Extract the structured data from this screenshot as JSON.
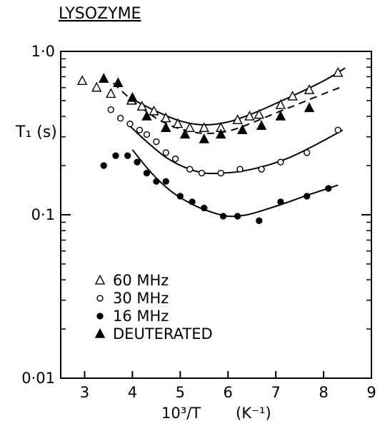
{
  "chart_data": {
    "type": "scatter",
    "title": "LYSOZYME",
    "xlabel": "10³/T",
    "xlabel_unit": "(K⁻¹)",
    "ylabel": "T₁ (s)",
    "xlim": [
      2.5,
      9
    ],
    "ylim": [
      0.01,
      1.0
    ],
    "y_scale": "log",
    "x_ticks": [
      3,
      4,
      5,
      6,
      7,
      8,
      9
    ],
    "x_tick_labels": [
      "3",
      "4",
      "5",
      "6",
      "7",
      "8",
      "9"
    ],
    "y_ticks": [
      0.01,
      0.1,
      1.0
    ],
    "y_tick_labels": [
      "0·01",
      "0·1",
      "1·0"
    ],
    "grid": false,
    "legend_position": "bottom-left",
    "series": [
      {
        "name": "60 MHz",
        "marker": "open-triangle",
        "points": [
          [
            2.95,
            0.66
          ],
          [
            3.25,
            0.6
          ],
          [
            3.55,
            0.55
          ],
          [
            3.98,
            0.5
          ],
          [
            4.2,
            0.46
          ],
          [
            4.45,
            0.43
          ],
          [
            4.7,
            0.39
          ],
          [
            4.95,
            0.36
          ],
          [
            5.2,
            0.34
          ],
          [
            5.5,
            0.34
          ],
          [
            5.85,
            0.34
          ],
          [
            6.2,
            0.38
          ],
          [
            6.45,
            0.4
          ],
          [
            6.65,
            0.41
          ],
          [
            7.1,
            0.47
          ],
          [
            7.35,
            0.53
          ],
          [
            7.7,
            0.58
          ],
          [
            8.3,
            0.74
          ]
        ],
        "fit": {
          "style": "solid",
          "points": [
            [
              4.0,
              0.51
            ],
            [
              4.5,
              0.43
            ],
            [
              5.0,
              0.375
            ],
            [
              5.5,
              0.355
            ],
            [
              6.0,
              0.37
            ],
            [
              6.5,
              0.415
            ],
            [
              7.0,
              0.48
            ],
            [
              7.5,
              0.56
            ],
            [
              8.0,
              0.66
            ],
            [
              8.45,
              0.79
            ]
          ]
        }
      },
      {
        "name": "30 MHz",
        "marker": "open-circle",
        "points": [
          [
            3.55,
            0.44
          ],
          [
            3.75,
            0.39
          ],
          [
            3.95,
            0.36
          ],
          [
            4.15,
            0.33
          ],
          [
            4.3,
            0.31
          ],
          [
            4.5,
            0.28
          ],
          [
            4.7,
            0.24
          ],
          [
            4.9,
            0.22
          ],
          [
            5.2,
            0.19
          ],
          [
            5.45,
            0.18
          ],
          [
            5.85,
            0.18
          ],
          [
            6.25,
            0.19
          ],
          [
            6.7,
            0.19
          ],
          [
            7.1,
            0.21
          ],
          [
            7.65,
            0.24
          ],
          [
            8.3,
            0.33
          ]
        ],
        "fit": {
          "style": "solid",
          "points": [
            [
              3.9,
              0.36
            ],
            [
              4.3,
              0.28
            ],
            [
              4.7,
              0.225
            ],
            [
              5.1,
              0.195
            ],
            [
              5.5,
              0.18
            ],
            [
              5.9,
              0.18
            ],
            [
              6.3,
              0.185
            ],
            [
              6.8,
              0.2
            ],
            [
              7.3,
              0.225
            ],
            [
              7.8,
              0.265
            ],
            [
              8.4,
              0.33
            ]
          ]
        }
      },
      {
        "name": "16 MHz",
        "marker": "filled-circle",
        "points": [
          [
            3.4,
            0.2
          ],
          [
            3.65,
            0.23
          ],
          [
            3.9,
            0.23
          ],
          [
            4.1,
            0.21
          ],
          [
            4.3,
            0.18
          ],
          [
            4.5,
            0.16
          ],
          [
            4.7,
            0.16
          ],
          [
            5.0,
            0.13
          ],
          [
            5.25,
            0.12
          ],
          [
            5.5,
            0.11
          ],
          [
            5.9,
            0.098
          ],
          [
            6.2,
            0.098
          ],
          [
            6.65,
            0.092
          ],
          [
            7.1,
            0.12
          ],
          [
            7.65,
            0.13
          ],
          [
            8.1,
            0.145
          ]
        ],
        "fit": {
          "style": "solid",
          "points": [
            [
              4.0,
              0.25
            ],
            [
              4.4,
              0.18
            ],
            [
              4.8,
              0.14
            ],
            [
              5.2,
              0.118
            ],
            [
              5.6,
              0.105
            ],
            [
              6.0,
              0.098
            ],
            [
              6.4,
              0.1
            ],
            [
              6.8,
              0.108
            ],
            [
              7.2,
              0.118
            ],
            [
              7.6,
              0.13
            ],
            [
              8.0,
              0.142
            ],
            [
              8.3,
              0.152
            ]
          ]
        }
      },
      {
        "name": "DEUTERATED",
        "marker": "filled-triangle",
        "points": [
          [
            3.4,
            0.68
          ],
          [
            3.7,
            0.64
          ],
          [
            4.0,
            0.52
          ],
          [
            4.3,
            0.4
          ],
          [
            4.7,
            0.34
          ],
          [
            5.1,
            0.31
          ],
          [
            5.5,
            0.29
          ],
          [
            5.85,
            0.31
          ],
          [
            6.3,
            0.33
          ],
          [
            6.7,
            0.35
          ],
          [
            7.1,
            0.4
          ],
          [
            7.7,
            0.45
          ]
        ],
        "fit": {
          "style": "dashed",
          "points": [
            [
              3.6,
              0.64
            ],
            [
              4.0,
              0.5
            ],
            [
              4.5,
              0.39
            ],
            [
              5.0,
              0.335
            ],
            [
              5.5,
              0.315
            ],
            [
              6.0,
              0.325
            ],
            [
              6.5,
              0.365
            ],
            [
              7.0,
              0.42
            ],
            [
              7.5,
              0.48
            ],
            [
              8.0,
              0.55
            ],
            [
              8.4,
              0.61
            ]
          ]
        }
      }
    ]
  }
}
